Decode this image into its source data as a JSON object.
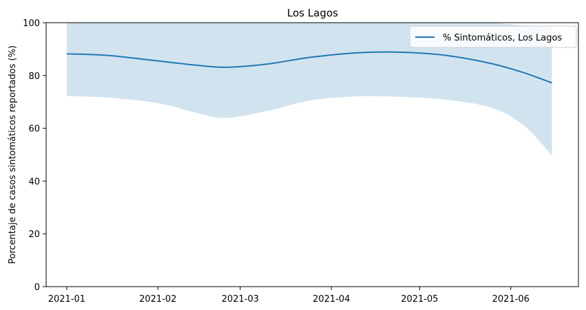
{
  "chart_data": {
    "type": "line",
    "title": "Los Lagos",
    "xlabel": "",
    "ylabel": "Porcentaje de casos sintomáticos reportados (%)",
    "x_type": "date",
    "xlim": [
      "2020-12-25",
      "2021-06-24"
    ],
    "ylim": [
      0,
      100
    ],
    "x_ticks": [
      "2021-01-01",
      "2021-02-01",
      "2021-03-01",
      "2021-04-01",
      "2021-05-01",
      "2021-06-01"
    ],
    "x_tick_labels": [
      "2021-01",
      "2021-02",
      "2021-03",
      "2021-04",
      "2021-05",
      "2021-06"
    ],
    "y_ticks": [
      0,
      20,
      40,
      60,
      80,
      100
    ],
    "y_tick_labels": [
      "0",
      "20",
      "40",
      "60",
      "80",
      "100"
    ],
    "grid": false,
    "legend_position": "top-right",
    "colors": {
      "line": "#1f77b4",
      "band": "#d2e3f0"
    },
    "x": [
      "2021-01-01",
      "2021-01-15",
      "2021-02-01",
      "2021-02-15",
      "2021-02-24",
      "2021-03-10",
      "2021-03-25",
      "2021-04-10",
      "2021-04-25",
      "2021-05-10",
      "2021-05-25",
      "2021-06-05",
      "2021-06-15"
    ],
    "series": [
      {
        "name": "% Sintomáticos, Los Lagos",
        "values": [
          88.2,
          87.6,
          85.5,
          83.8,
          83.1,
          84.3,
          86.9,
          88.6,
          88.8,
          87.6,
          84.6,
          81.2,
          77.2
        ],
        "lower": [
          72.2,
          71.6,
          69.5,
          65.6,
          63.9,
          66.5,
          70.6,
          72.1,
          71.9,
          70.8,
          67.9,
          61.5,
          49.7
        ],
        "upper": [
          100,
          100,
          100,
          100,
          100,
          100,
          100,
          100,
          100,
          100,
          100,
          99.0,
          98.4
        ]
      }
    ]
  }
}
